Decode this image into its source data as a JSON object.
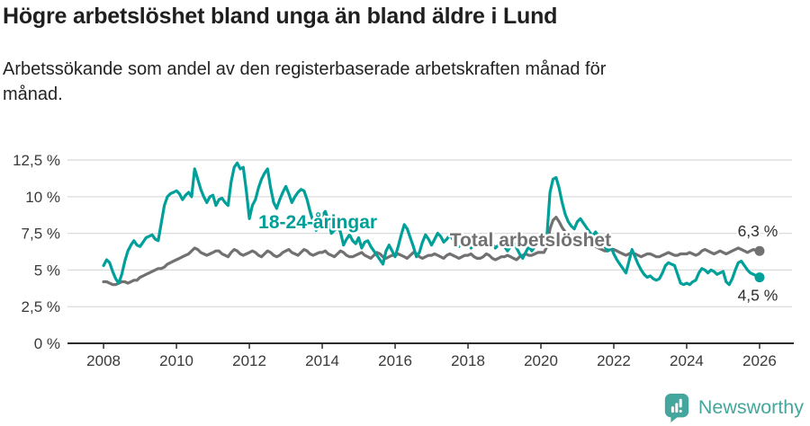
{
  "header": {
    "title": "Högre arbetslöshet bland unga än bland äldre i Lund",
    "subtitle_lines": [
      "Arbetssökande som andel av den registerbaserade arbetskraften månad för",
      "månad."
    ]
  },
  "footer": {
    "brand_name": "Newsworthy",
    "brand_icon": "newsworthy-speech-bubble-bar-chart-icon",
    "brand_color": "#44a69d"
  },
  "colors": {
    "youth_line": "#00a09a",
    "total_line": "#717171",
    "gridline": "#dcdcdc",
    "axis": "#2b2b2b",
    "axis_text": "#3a3a3a",
    "annotation_text": "#2e2e2e"
  },
  "chart_data": {
    "type": "line",
    "title": "Högre arbetslöshet bland unga än bland äldre i Lund",
    "xlabel": "",
    "ylabel": "",
    "x_unit": "months from Jan 2008 to Jan 2026",
    "x_monthly_start": 2008,
    "xlim": [
      2007.01,
      2026.89
    ],
    "ylim": [
      0,
      13.24
    ],
    "grid": true,
    "x_ticks": [
      {
        "value": 2008,
        "label": "2008"
      },
      {
        "value": 2010,
        "label": "2010"
      },
      {
        "value": 2012,
        "label": "2012"
      },
      {
        "value": 2014,
        "label": "2014"
      },
      {
        "value": 2016,
        "label": "2016"
      },
      {
        "value": 2018,
        "label": "2018"
      },
      {
        "value": 2020,
        "label": "2020"
      },
      {
        "value": 2022,
        "label": "2022"
      },
      {
        "value": 2024,
        "label": "2024"
      },
      {
        "value": 2026,
        "label": "2026"
      }
    ],
    "y_ticks": [
      {
        "value": 0,
        "label": "0 %"
      },
      {
        "value": 2.5,
        "label": "2,5 %"
      },
      {
        "value": 5,
        "label": "5 %"
      },
      {
        "value": 7.5,
        "label": "7,5 %"
      },
      {
        "value": 10,
        "label": "10 %"
      },
      {
        "value": 12.5,
        "label": "12,5 %"
      }
    ],
    "series": [
      {
        "key": "youth",
        "name": "18-24-åringar",
        "color": "#00a09a",
        "label": {
          "text": "18-24-åringar",
          "x": 2012.25,
          "y": 7.85
        },
        "end_label": {
          "text": "4,5 %",
          "position": "below"
        },
        "values": [
          5.3,
          5.7,
          5.5,
          4.9,
          4.4,
          4.1,
          4.7,
          5.6,
          6.3,
          6.7,
          7.0,
          6.7,
          6.6,
          6.9,
          7.2,
          7.3,
          7.4,
          7.1,
          7.0,
          8.2,
          9.4,
          10.0,
          10.2,
          10.3,
          10.4,
          10.2,
          9.8,
          10.1,
          10.3,
          10.0,
          11.9,
          11.2,
          10.5,
          10.0,
          9.6,
          10.0,
          10.1,
          9.4,
          9.8,
          9.9,
          9.6,
          9.4,
          11.0,
          12.0,
          12.3,
          11.9,
          12.0,
          10.4,
          8.5,
          9.4,
          9.8,
          10.6,
          11.2,
          11.6,
          11.9,
          10.6,
          9.6,
          9.2,
          9.8,
          10.3,
          10.7,
          10.2,
          9.6,
          10.0,
          10.3,
          10.5,
          10.4,
          9.8,
          9.0,
          8.3,
          7.7,
          8.2,
          8.7,
          9.0,
          8.4,
          7.5,
          7.7,
          7.9,
          7.6,
          6.7,
          7.1,
          7.4,
          7.0,
          6.8,
          7.2,
          6.5,
          6.9,
          7.0,
          6.6,
          6.3,
          6.0,
          5.7,
          5.4,
          6.3,
          6.7,
          6.3,
          5.9,
          6.6,
          7.4,
          8.1,
          7.8,
          7.2,
          6.6,
          5.9,
          6.2,
          6.9,
          7.4,
          7.1,
          6.7,
          7.1,
          7.5,
          7.3,
          6.9,
          7.1,
          7.4,
          7.1,
          6.8,
          6.6,
          6.9,
          7.1,
          6.8,
          6.5,
          6.9,
          7.2,
          6.9,
          6.6,
          7.0,
          7.2,
          6.8,
          6.5,
          6.7,
          6.9,
          6.6,
          6.3,
          6.6,
          6.9,
          6.5,
          6.1,
          5.8,
          6.2,
          6.6,
          6.3,
          6.6,
          6.9,
          6.8,
          6.6,
          7.4,
          10.3,
          11.2,
          11.3,
          10.6,
          9.6,
          8.8,
          8.3,
          8.0,
          7.8,
          8.3,
          8.5,
          8.2,
          7.9,
          7.6,
          7.3,
          7.6,
          7.3,
          6.9,
          6.6,
          6.3,
          6.6,
          6.1,
          5.7,
          5.4,
          5.1,
          4.8,
          5.6,
          6.4,
          5.9,
          5.4,
          5.0,
          4.7,
          4.5,
          4.6,
          4.4,
          4.3,
          4.4,
          4.8,
          5.3,
          5.5,
          5.4,
          5.3,
          4.7,
          4.1,
          4.0,
          4.1,
          4.0,
          4.2,
          4.3,
          4.8,
          5.1,
          5.0,
          4.8,
          5.0,
          4.9,
          4.7,
          4.8,
          4.9,
          4.2,
          4.0,
          4.4,
          5.0,
          5.5,
          5.6,
          5.3,
          5.0,
          4.8,
          4.7,
          4.6,
          4.5
        ]
      },
      {
        "key": "total",
        "name": "Total arbetslöshet",
        "color": "#717171",
        "label": {
          "text": "Total arbetslöshet",
          "x": 2017.5,
          "y": 6.62
        },
        "end_label": {
          "text": "6,3 %",
          "position": "above"
        },
        "values": [
          4.2,
          4.2,
          4.1,
          4.0,
          4.0,
          4.1,
          4.2,
          4.2,
          4.1,
          4.2,
          4.3,
          4.3,
          4.5,
          4.6,
          4.7,
          4.8,
          4.9,
          5.0,
          5.1,
          5.1,
          5.2,
          5.4,
          5.5,
          5.6,
          5.7,
          5.8,
          5.9,
          6.0,
          6.1,
          6.3,
          6.5,
          6.4,
          6.2,
          6.1,
          6.0,
          6.1,
          6.2,
          6.3,
          6.3,
          6.1,
          6.0,
          5.9,
          6.2,
          6.4,
          6.3,
          6.1,
          6.0,
          6.1,
          6.2,
          6.3,
          6.2,
          6.0,
          5.9,
          6.1,
          6.3,
          6.2,
          6.0,
          5.9,
          6.0,
          6.2,
          6.3,
          6.4,
          6.2,
          6.1,
          6.0,
          6.2,
          6.4,
          6.3,
          6.1,
          6.0,
          6.1,
          6.2,
          6.2,
          6.3,
          6.1,
          6.0,
          5.9,
          6.1,
          6.3,
          6.2,
          6.0,
          5.9,
          5.9,
          6.0,
          6.1,
          6.2,
          6.0,
          5.9,
          5.8,
          6.0,
          6.2,
          6.1,
          5.9,
          5.8,
          5.9,
          6.0,
          6.0,
          6.1,
          6.0,
          5.9,
          5.8,
          6.0,
          6.2,
          6.1,
          5.9,
          5.8,
          5.9,
          6.0,
          6.0,
          6.1,
          6.0,
          5.9,
          5.8,
          6.0,
          6.1,
          6.0,
          5.9,
          5.8,
          5.9,
          6.0,
          6.0,
          6.1,
          5.9,
          5.8,
          5.8,
          5.9,
          6.1,
          6.0,
          5.8,
          5.7,
          5.8,
          5.9,
          5.9,
          6.0,
          5.9,
          5.8,
          5.7,
          5.9,
          6.0,
          6.1,
          6.0,
          6.0,
          6.1,
          6.2,
          6.2,
          6.2,
          6.6,
          7.8,
          8.4,
          8.6,
          8.3,
          7.9,
          7.6,
          7.4,
          7.2,
          7.1,
          7.0,
          7.0,
          6.9,
          6.8,
          6.7,
          6.6,
          6.6,
          6.5,
          6.4,
          6.3,
          6.3,
          6.4,
          6.4,
          6.3,
          6.2,
          6.1,
          6.0,
          6.1,
          6.2,
          6.1,
          6.0,
          5.9,
          6.0,
          6.1,
          6.1,
          6.0,
          5.9,
          5.9,
          6.0,
          6.1,
          6.2,
          6.1,
          6.0,
          6.0,
          6.1,
          6.1,
          6.1,
          6.2,
          6.1,
          6.0,
          6.1,
          6.3,
          6.4,
          6.3,
          6.2,
          6.1,
          6.2,
          6.3,
          6.2,
          6.1,
          6.2,
          6.3,
          6.4,
          6.5,
          6.4,
          6.3,
          6.2,
          6.3,
          6.4,
          6.3,
          6.3
        ]
      }
    ]
  }
}
